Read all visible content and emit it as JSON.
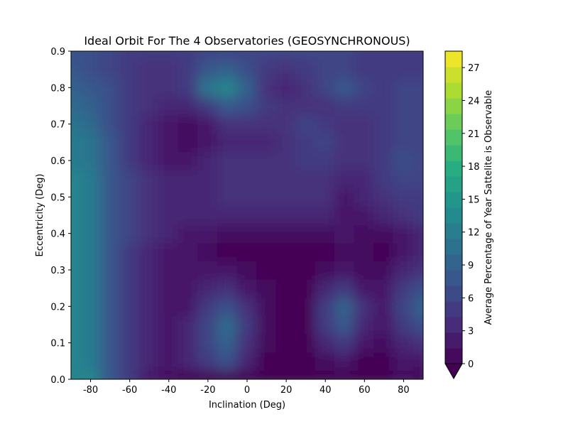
{
  "chart_data": {
    "type": "heatmap",
    "title": "Ideal Orbit For The 4 Observatories (GEOSYNCHRONOUS)",
    "xlabel": "Inclination (Deg)",
    "ylabel": "Eccentricity (Deg)",
    "xlim": [
      -90,
      90
    ],
    "ylim": [
      0,
      0.9
    ],
    "x_ticks": [
      -80,
      -60,
      -40,
      -20,
      0,
      20,
      40,
      60,
      80
    ],
    "y_ticks": [
      0.0,
      0.1,
      0.2,
      0.3,
      0.4,
      0.5,
      0.6,
      0.7,
      0.8,
      0.9
    ],
    "y_tick_labels": [
      "0.0",
      "0.1",
      "0.2",
      "0.3",
      "0.4",
      "0.5",
      "0.6",
      "0.7",
      "0.8",
      "0.9"
    ],
    "colorbar": {
      "label": "Average Percentage of Year Sattelite is Observable",
      "vmin": 0,
      "vmax": 28.5,
      "ticks": [
        0,
        3,
        6,
        9,
        12,
        15,
        18,
        21,
        24,
        27
      ],
      "extend": "min",
      "levels": 20
    },
    "x": [
      -90,
      -80,
      -70,
      -60,
      -50,
      -40,
      -30,
      -20,
      -10,
      0,
      10,
      20,
      30,
      40,
      50,
      60,
      70,
      80,
      90
    ],
    "y": [
      0.0,
      0.05,
      0.1,
      0.15,
      0.2,
      0.25,
      0.3,
      0.35,
      0.4,
      0.45,
      0.5,
      0.55,
      0.6,
      0.65,
      0.7,
      0.75,
      0.8,
      0.85,
      0.9
    ],
    "z": [
      [
        13,
        13,
        8,
        5,
        2,
        1,
        0,
        0,
        0,
        0,
        0,
        0,
        0,
        0,
        0,
        0,
        0,
        1,
        0
      ],
      [
        13,
        12,
        8,
        5,
        3,
        2,
        3,
        5,
        7,
        3,
        0,
        0,
        0,
        1,
        2,
        0,
        0,
        2,
        2
      ],
      [
        13,
        12,
        8,
        5,
        3,
        2,
        3,
        6,
        9,
        4,
        1,
        0,
        0,
        3,
        5,
        2,
        1,
        3,
        4
      ],
      [
        13,
        12,
        8,
        5,
        3,
        2,
        3,
        6,
        10,
        5,
        1,
        0,
        0,
        5,
        8,
        3,
        2,
        5,
        7
      ],
      [
        13,
        12,
        8,
        5,
        3,
        2,
        2,
        5,
        7,
        4,
        1,
        0,
        0,
        5,
        9,
        4,
        2,
        6,
        9
      ],
      [
        13,
        12,
        8,
        5,
        3,
        2,
        2,
        3,
        4,
        2,
        1,
        0,
        0,
        3,
        5,
        2,
        2,
        5,
        7
      ],
      [
        13,
        12,
        8,
        5,
        3,
        2,
        2,
        2,
        2,
        1,
        0,
        0,
        0,
        1,
        2,
        1,
        1,
        3,
        4
      ],
      [
        13,
        12,
        8,
        5,
        3,
        2,
        2,
        1,
        0,
        0,
        0,
        0,
        0,
        0,
        1,
        1,
        0,
        2,
        3
      ],
      [
        13,
        12,
        8,
        6,
        4,
        3,
        2,
        2,
        1,
        1,
        1,
        1,
        1,
        1,
        2,
        1,
        1,
        2,
        3
      ],
      [
        13,
        12,
        8,
        6,
        4,
        3,
        3,
        3,
        3,
        3,
        3,
        3,
        3,
        3,
        2,
        2,
        3,
        4,
        5
      ],
      [
        13,
        12,
        8,
        6,
        4,
        3,
        3,
        3,
        4,
        4,
        4,
        4,
        4,
        4,
        2,
        3,
        4,
        5,
        5
      ],
      [
        13,
        12,
        8,
        6,
        4,
        3,
        3,
        3,
        4,
        4,
        4,
        4,
        4,
        4,
        3,
        3,
        5,
        6,
        6
      ],
      [
        12,
        11,
        8,
        5,
        3,
        2,
        2,
        3,
        4,
        4,
        4,
        4,
        5,
        5,
        4,
        4,
        5,
        7,
        6
      ],
      [
        12,
        11,
        8,
        5,
        3,
        2,
        1,
        2,
        3,
        3,
        3,
        4,
        5,
        6,
        4,
        4,
        5,
        6,
        6
      ],
      [
        11,
        10,
        7,
        5,
        3,
        2,
        1,
        2,
        4,
        4,
        4,
        4,
        6,
        5,
        4,
        4,
        5,
        6,
        6
      ],
      [
        10,
        9,
        7,
        5,
        4,
        3,
        3,
        5,
        8,
        7,
        5,
        4,
        4,
        4,
        5,
        5,
        5,
        6,
        6
      ],
      [
        9,
        8,
        7,
        5,
        4,
        4,
        5,
        11,
        13,
        9,
        4,
        3,
        4,
        6,
        8,
        6,
        5,
        6,
        6
      ],
      [
        8,
        7,
        6,
        5,
        4,
        4,
        5,
        8,
        9,
        7,
        5,
        4,
        5,
        6,
        6,
        5,
        5,
        5,
        5
      ],
      [
        7,
        7,
        6,
        5,
        5,
        5,
        5,
        6,
        6,
        6,
        6,
        6,
        6,
        6,
        6,
        5,
        5,
        5,
        5
      ]
    ]
  }
}
